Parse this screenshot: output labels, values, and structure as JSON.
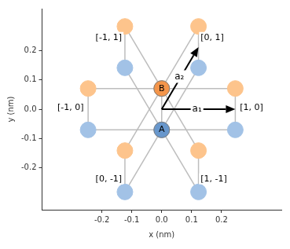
{
  "chart_data": {
    "type": "scatter",
    "xlabel": "x (nm)",
    "ylabel": "y (nm)",
    "xlim": [
      -0.4,
      0.4
    ],
    "ylim": [
      -0.345,
      0.345
    ],
    "xticks": [
      -0.2,
      -0.1,
      {
        "value": 0,
        "label": "0.0"
      },
      0.1,
      0.2
    ],
    "yticks": [
      -0.2,
      -0.1,
      {
        "value": 0,
        "label": "0.0"
      },
      0.1,
      0.2
    ],
    "grid": false,
    "marker": "circle",
    "series": [
      {
        "name": "A",
        "color": "#a2c2e6",
        "x": [
          0,
          -0.123,
          0.123,
          0.246,
          -0.246,
          -0.123,
          0.123
        ],
        "y": [
          -0.071,
          0.142,
          0.142,
          -0.071,
          -0.071,
          -0.284,
          -0.284
        ]
      },
      {
        "name": "B",
        "color": "#fdc48c",
        "x": [
          0,
          -0.123,
          0.123,
          0.246,
          -0.246,
          -0.123,
          0.123
        ],
        "y": [
          0.071,
          0.284,
          0.284,
          0.071,
          0.071,
          -0.142,
          -0.142
        ]
      }
    ],
    "bonds": [
      [
        0,
        -0.071,
        -0.123,
        0.142
      ],
      [
        0,
        -0.071,
        0.123,
        0.142
      ],
      [
        0,
        -0.071,
        0.246,
        -0.071
      ],
      [
        0,
        -0.071,
        -0.246,
        -0.071
      ],
      [
        0,
        -0.071,
        -0.123,
        -0.284
      ],
      [
        0,
        -0.071,
        0.123,
        -0.284
      ],
      [
        0,
        0.071,
        -0.123,
        0.284
      ],
      [
        0,
        0.071,
        0.123,
        0.284
      ],
      [
        0,
        0.071,
        0.246,
        0.071
      ],
      [
        0,
        0.071,
        -0.246,
        0.071
      ],
      [
        0,
        0.071,
        -0.123,
        -0.142
      ],
      [
        0,
        0.071,
        0.123,
        -0.142
      ],
      [
        0,
        -0.071,
        0,
        0.071
      ],
      [
        -0.123,
        0.142,
        -0.123,
        0.284
      ],
      [
        0.123,
        0.142,
        0.123,
        0.284
      ],
      [
        0.246,
        -0.071,
        0.246,
        0.071
      ],
      [
        -0.246,
        -0.071,
        -0.246,
        0.071
      ],
      [
        -0.123,
        -0.284,
        -0.123,
        -0.142
      ],
      [
        0.123,
        -0.284,
        0.123,
        -0.142
      ]
    ],
    "atom_labels": [
      {
        "text": "A",
        "x": 0,
        "y": -0.071,
        "color": "#6897cc"
      },
      {
        "text": "B",
        "x": 0,
        "y": 0.071,
        "color": "#f4954a"
      }
    ],
    "arrows": [
      {
        "text": "a₁",
        "x0": 0,
        "y0": 0,
        "x1": 0.246,
        "y1": 0,
        "text_x": 0.118,
        "text_y": 0
      },
      {
        "text": "a₂",
        "x0": 0,
        "y0": 0,
        "x1": 0.123,
        "y1": 0.213,
        "text_x": 0.059,
        "text_y": 0.112
      }
    ],
    "cell_labels": [
      {
        "text": "[-1, 1]",
        "x": -0.177,
        "y": 0.246
      },
      {
        "text": "[0, 1]",
        "x": 0.169,
        "y": 0.246
      },
      {
        "text": "[-1, 0]",
        "x": -0.305,
        "y": 0.004
      },
      {
        "text": "[1, 0]",
        "x": 0.3,
        "y": 0.004
      },
      {
        "text": "[0, -1]",
        "x": -0.177,
        "y": -0.239
      },
      {
        "text": "[1, -1]",
        "x": 0.174,
        "y": -0.239
      }
    ]
  }
}
